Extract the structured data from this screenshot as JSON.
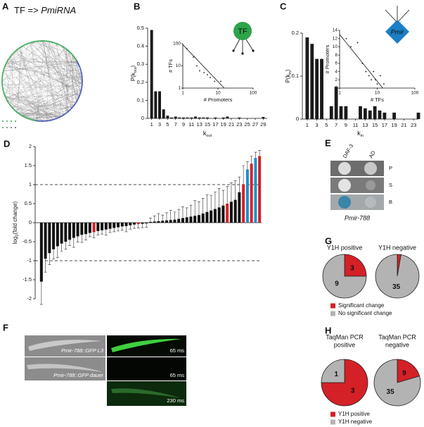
{
  "panel_A": {
    "label": "A",
    "title": "TF => ",
    "title_italic": "PmiRNA"
  },
  "chart_data": [
    {
      "label": "B",
      "type": "bar",
      "x": [
        1,
        2,
        3,
        4,
        5,
        6,
        7,
        8,
        9,
        10,
        11,
        12,
        13,
        14,
        15,
        17,
        19,
        20,
        23,
        29
      ],
      "values": [
        0.49,
        0.15,
        0.15,
        0.05,
        0.015,
        0.005,
        0.01,
        0.005,
        0.005,
        0.005,
        0.005,
        0.01,
        0.005,
        0.005,
        0.005,
        0.005,
        0.005,
        0.01,
        0.005,
        0.008
      ],
      "color": "#1a1a1a",
      "xlim": [
        0,
        30
      ],
      "xticks": [
        1,
        3,
        5,
        7,
        9,
        11,
        13,
        15,
        17,
        19,
        21,
        23,
        25,
        27,
        29
      ],
      "ylim": [
        0,
        0.5
      ],
      "yticks": [
        0,
        0.1,
        0.2,
        0.3,
        0.4,
        0.5
      ],
      "xlabel": "k",
      "xlabel_sub": "out",
      "ylabel": "P(k",
      "ylabel_sub": "out",
      "ylabel_end": ")",
      "inset": {
        "type": "scatter",
        "x": [
          1.3,
          2,
          2.5,
          3,
          4,
          5,
          6,
          8,
          12
        ],
        "y": [
          60,
          25,
          10,
          6,
          5,
          4,
          3,
          2,
          2
        ],
        "fit": {
          "x": [
            1,
            15
          ],
          "y": [
            90,
            1
          ]
        },
        "log_x": true,
        "log_y": true,
        "xlim": [
          1,
          100
        ],
        "ylim": [
          1,
          100
        ],
        "xticks": [
          1,
          10,
          100
        ],
        "yticks": [
          1,
          10,
          100
        ],
        "xlabel": "# Promoters",
        "ylabel": "# TFs"
      },
      "icon_label": "TF"
    },
    {
      "label": "C",
      "type": "bar",
      "x": [
        1,
        2,
        3,
        4,
        6,
        7,
        8,
        9,
        12,
        13,
        14,
        15,
        16,
        17,
        19,
        24
      ],
      "values": [
        0.19,
        0.175,
        0.14,
        0.14,
        0.03,
        0.075,
        0.03,
        0.03,
        0.03,
        0.025,
        0.02,
        0.03,
        0.02,
        0.015,
        0.015,
        0.015
      ],
      "color": "#1a1a1a",
      "xlim": [
        0,
        24
      ],
      "xticks": [
        1,
        3,
        5,
        7,
        9,
        11,
        13,
        15,
        17,
        19,
        21,
        23
      ],
      "ylim": [
        0,
        0.2
      ],
      "yticks": [
        0,
        0.1,
        0.2
      ],
      "xlabel": "k",
      "xlabel_sub": "in",
      "ylabel": "P(k",
      "ylabel_sub": "in",
      "ylabel_end": ")",
      "inset": {
        "type": "scatter",
        "x": [
          1.5,
          2,
          3,
          4,
          5,
          6,
          7,
          8,
          9,
          10,
          12,
          15
        ],
        "y": [
          12,
          10,
          11,
          6,
          4,
          3,
          2,
          4,
          2,
          1,
          3,
          1
        ],
        "fit": {
          "x": [
            1,
            14
          ],
          "y": [
            13,
            0
          ]
        },
        "log_x": true,
        "log_y": false,
        "xlim": [
          1,
          100
        ],
        "ylim": [
          0,
          14
        ],
        "xticks": [
          1,
          10,
          100
        ],
        "yticks": [
          0,
          2,
          4,
          6,
          8,
          10,
          12,
          14
        ],
        "xlabel": "# TFs",
        "ylabel": "# Promoters"
      },
      "icon_label": "Pmir"
    },
    {
      "label": "D",
      "type": "bar",
      "values": [
        -1.55,
        -0.95,
        -0.8,
        -0.7,
        -0.62,
        -0.55,
        -0.5,
        -0.45,
        -0.4,
        -0.36,
        -0.32,
        -0.3,
        -0.27,
        -0.25,
        -0.22,
        -0.2,
        -0.18,
        -0.16,
        -0.14,
        -0.12,
        -0.1,
        -0.09,
        -0.07,
        -0.05,
        -0.04,
        -0.03,
        -0.02,
        0.02,
        0.03,
        0.04,
        0.05,
        0.06,
        0.07,
        0.08,
        0.1,
        0.12,
        0.14,
        0.16,
        0.18,
        0.2,
        0.24,
        0.28,
        0.32,
        0.36,
        0.4,
        0.45,
        0.5,
        0.55,
        0.6,
        0.8,
        1.0,
        1.4,
        1.55,
        1.7,
        1.75
      ],
      "errors": [
        0.6,
        0.35,
        0.3,
        0.25,
        0.3,
        0.2,
        0.2,
        0.15,
        0.25,
        0.15,
        0.2,
        0.15,
        0.1,
        0.15,
        0.1,
        0.1,
        0.15,
        0.1,
        0.1,
        0.1,
        0.1,
        0.15,
        0.1,
        0.1,
        0.1,
        0.1,
        0.1,
        0.1,
        0.15,
        0.2,
        0.15,
        0.2,
        0.25,
        0.2,
        0.25,
        0.3,
        0.25,
        0.3,
        0.4,
        0.35,
        0.4,
        0.45,
        0.4,
        0.45,
        0.5,
        0.4,
        0.45,
        0.5,
        0.5,
        0.4,
        0.5,
        0.2,
        0.2,
        0.15,
        0.15
      ],
      "colors": [
        "#111",
        "#111",
        "#111",
        "#111",
        "#111",
        "#111",
        "#111",
        "#111",
        "#111",
        "#111",
        "#111",
        "#111",
        "#111",
        "#d42027",
        "#111",
        "#111",
        "#111",
        "#111",
        "#111",
        "#111",
        "#111",
        "#111",
        "#111",
        "#111",
        "#d42027",
        "#111",
        "#111",
        "#111",
        "#111",
        "#111",
        "#111",
        "#111",
        "#111",
        "#111",
        "#111",
        "#111",
        "#111",
        "#111",
        "#111",
        "#111",
        "#111",
        "#111",
        "#111",
        "#111",
        "#111",
        "#111",
        "#d42027",
        "#111",
        "#111",
        "#111",
        "#d42027",
        "#1a8fd0",
        "#d42027",
        "#1a8fd0",
        "#d42027"
      ],
      "ylim": [
        -2,
        2
      ],
      "yticks": [
        -2,
        -1.5,
        -1,
        -0.5,
        0,
        0.5,
        1,
        1.5,
        2
      ],
      "reference_lines": [
        1,
        -1
      ],
      "ylabel": "log",
      "ylabel_sub": "2",
      "ylabel_end": "(fold change)"
    },
    {
      "label": "G",
      "type": "pie",
      "categories": [
        "Significant change",
        "No significant change"
      ],
      "colors": [
        "#d42027",
        "#b3b3b3"
      ],
      "pies": [
        {
          "title": [
            "Y1H positive"
          ],
          "values": [
            3,
            9
          ]
        },
        {
          "title": [
            "Y1H negative"
          ],
          "values": [
            1,
            35
          ]
        }
      ]
    },
    {
      "label": "H",
      "type": "pie",
      "categories": [
        "Y1H positive",
        "Y1H negative"
      ],
      "colors": [
        "#d42027",
        "#b3b3b3"
      ],
      "pies": [
        {
          "title": [
            "TaqMan PCR",
            "positive"
          ],
          "values": [
            3,
            1
          ]
        },
        {
          "title": [
            "TaqMan PCR",
            "negative"
          ],
          "values": [
            9,
            35
          ]
        }
      ]
    }
  ],
  "panel_E": {
    "label": "E",
    "columns": [
      "DAF-3",
      "AD"
    ],
    "rows": [
      "P",
      "S",
      "B"
    ],
    "caption": "Pmir-788"
  },
  "panel_F": {
    "label": "F",
    "image_labels": [
      "Pmir-788::GFP L3",
      "Pmir-788::GFP dauer"
    ],
    "exposures": [
      "65 ms",
      "65 ms",
      "230 ms"
    ]
  }
}
